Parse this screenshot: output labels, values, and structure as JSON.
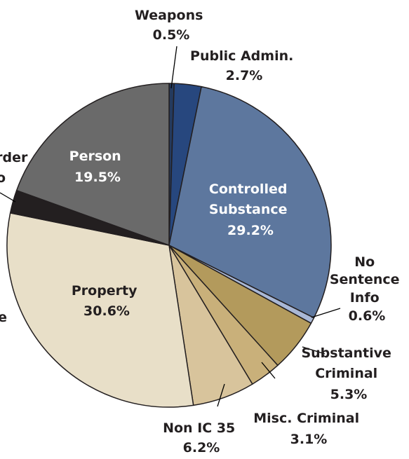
{
  "chart_data": {
    "type": "pie",
    "title": "",
    "slices": [
      {
        "label": "Weapons",
        "value": 0.5,
        "value_text": "0.5%",
        "color": "#243a5e"
      },
      {
        "label": "Public Admin.",
        "value": 2.7,
        "value_text": "2.7%",
        "color": "#27477e"
      },
      {
        "label": "Controlled Substance",
        "value": 29.2,
        "value_text": "29.2%",
        "color": "#5d779e"
      },
      {
        "label": "No Sentence Info",
        "value": 0.6,
        "value_text": "0.6%",
        "color": "#a9b8d6"
      },
      {
        "label": "Substantive Criminal",
        "value": 5.3,
        "value_text": "5.3%",
        "color": "#b39a5c"
      },
      {
        "label": "Misc. Criminal",
        "value": 3.1,
        "value_text": "3.1%",
        "color": "#c9b07a"
      },
      {
        "label": "Non IC 35",
        "value": 6.2,
        "value_text": "6.2%",
        "color": "#d8c49c"
      },
      {
        "label": "Property",
        "value": 30.6,
        "value_text": "30.6%",
        "color": "#e8dfc8"
      },
      {
        "label": "Public Order",
        "value": 2.3,
        "value_text": "",
        "color": "#231f20"
      },
      {
        "label": "Person",
        "value": 19.5,
        "value_text": "19.5%",
        "color": "#6a6a6a"
      }
    ]
  },
  "labels": {
    "weapons": [
      "Weapons",
      "0.5%"
    ],
    "public_admin": [
      "Public Admin.",
      "2.7%"
    ],
    "controlled": [
      "Controlled",
      "Substance",
      "29.2%"
    ],
    "no_sentence": [
      "No",
      "Sentence",
      "Info",
      "0.6%"
    ],
    "substantive": [
      "Substantive",
      "Criminal",
      "5.3%"
    ],
    "misc": [
      "Misc. Criminal",
      "3.1%"
    ],
    "non_ic": [
      "Non IC 35",
      "6.2%"
    ],
    "property": [
      "Property",
      "30.6%"
    ],
    "person": [
      "Person",
      "19.5%"
    ],
    "public_order_partial": [
      "rder",
      "o"
    ],
    "property_left_partial": [
      "e"
    ]
  }
}
